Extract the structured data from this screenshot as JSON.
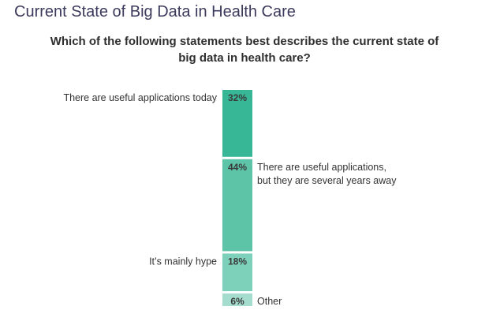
{
  "page": {
    "title": "Current State of Big Data in Health Care"
  },
  "chart_data": {
    "type": "bar",
    "stacked": true,
    "orientation": "vertical",
    "title_lines": [
      "Which of the following statements best describes the current state of",
      "big data in health care?"
    ],
    "unit": "%",
    "categories": [
      "There are useful applications today",
      "There are useful applications, but they are several years away",
      "It's mainly hype",
      "Other"
    ],
    "label_lines": [
      [
        "There are useful applications today"
      ],
      [
        "There are useful applications,",
        "but they are several years away"
      ],
      [
        "It’s mainly hype"
      ],
      [
        "Other"
      ]
    ],
    "values": [
      32,
      44,
      18,
      6
    ],
    "value_labels": [
      "32%",
      "44%",
      "18%",
      "6%"
    ],
    "label_side": [
      "left",
      "right",
      "left",
      "right"
    ],
    "colors": [
      "#38b796",
      "#5ec4a8",
      "#7dd0b9",
      "#a4ddcd"
    ],
    "ylim": [
      0,
      100
    ],
    "grid": false,
    "legend": "none"
  }
}
